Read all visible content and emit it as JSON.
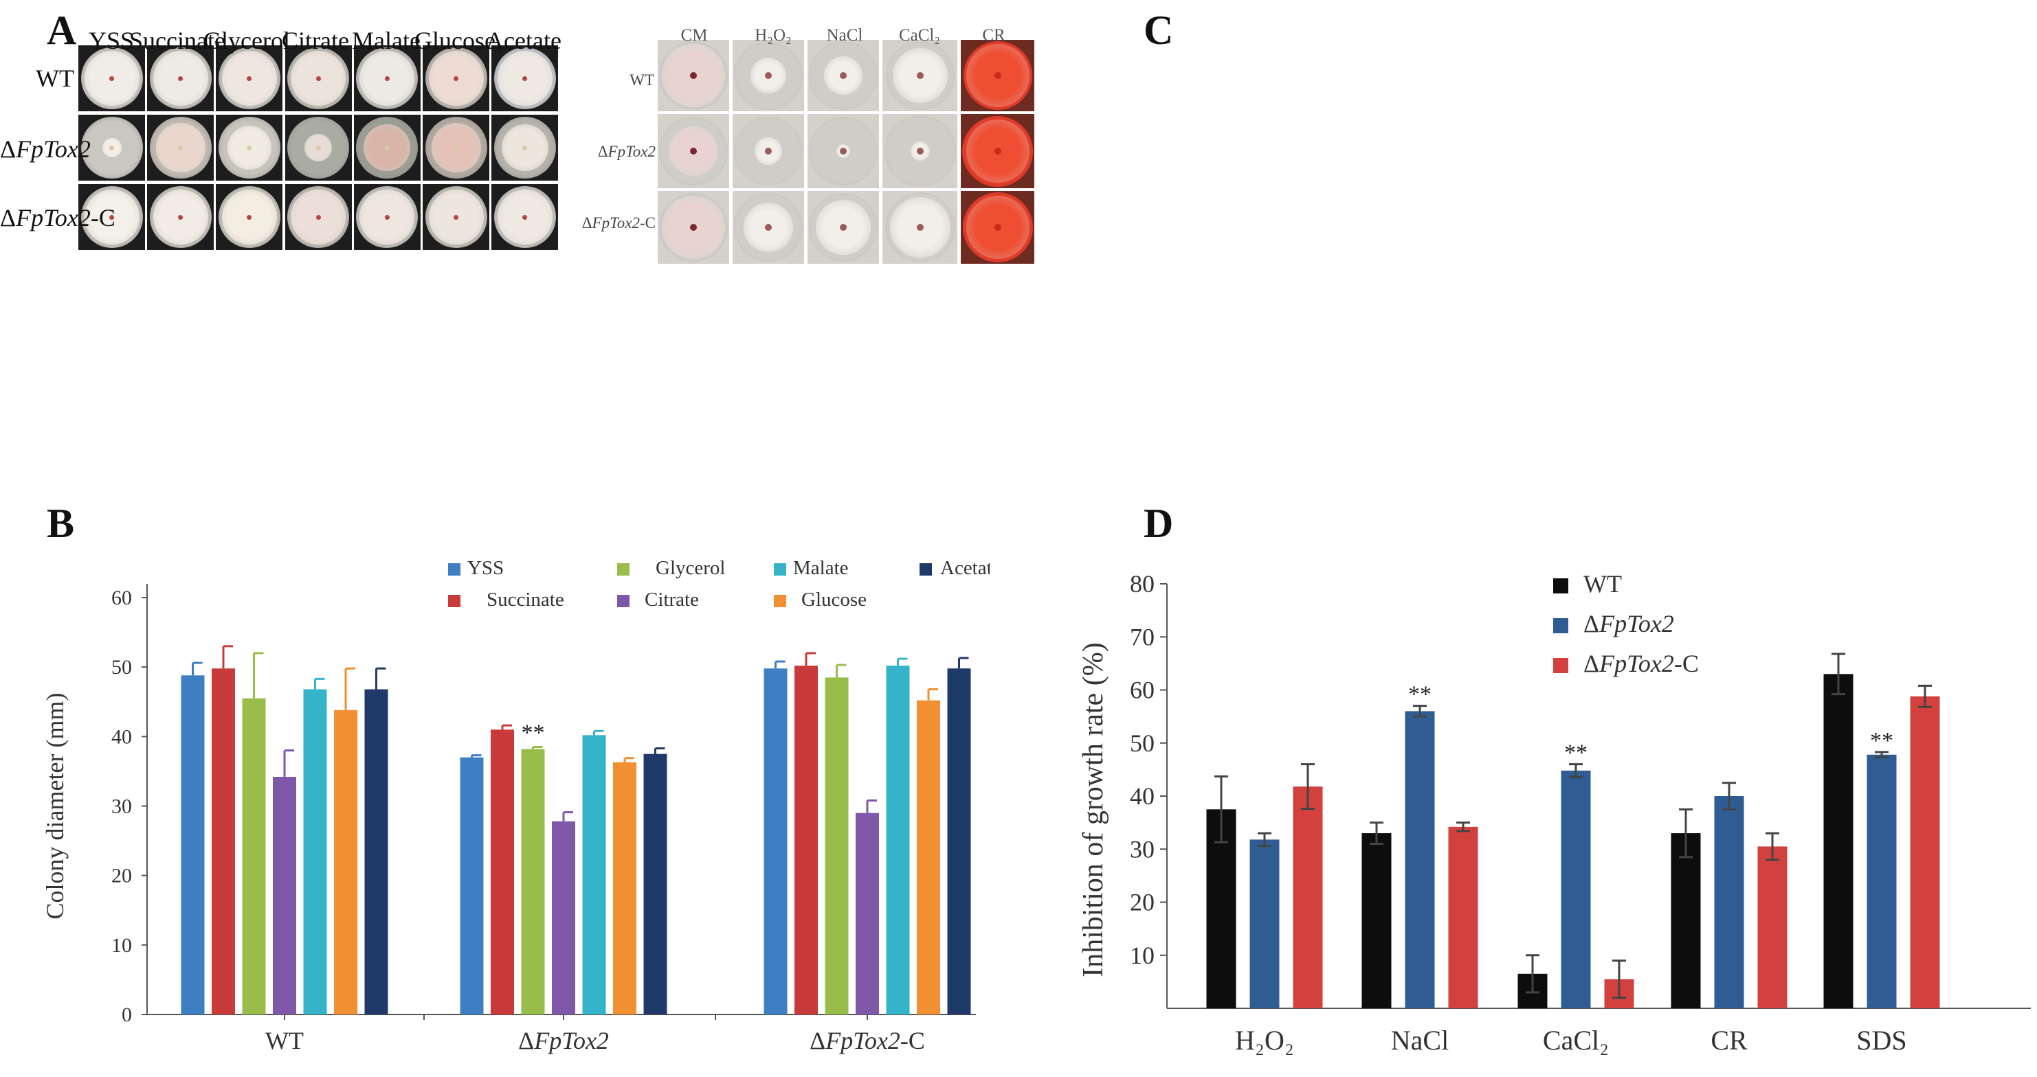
{
  "panels": {
    "A": {
      "letter": "A",
      "columns": [
        "YSS",
        "Succinate",
        "Glycerol",
        "Citrate",
        "Malate",
        "Glucose",
        "Acetate"
      ],
      "rows": [
        {
          "delta": "",
          "italic": "",
          "suffix": "WT"
        },
        {
          "delta": "Δ",
          "italic": "FpTox2",
          "suffix": ""
        },
        {
          "delta": "Δ",
          "italic": "FpTox2",
          "suffix": "-C"
        }
      ]
    },
    "C": {
      "letter": "C",
      "columns": [
        "CM",
        "H₂O₂",
        "NaCl",
        "CaCl₂",
        "CR"
      ],
      "rows": [
        {
          "delta": "",
          "italic": "",
          "suffix": "WT"
        },
        {
          "delta": "Δ",
          "italic": "FpTox2",
          "suffix": ""
        },
        {
          "delta": "Δ",
          "italic": "FpTox2",
          "suffix": "-C"
        }
      ]
    },
    "B": {
      "letter": "B"
    },
    "D": {
      "letter": "D"
    }
  },
  "chart_data": [
    {
      "id": "B",
      "type": "bar",
      "ylabel": "Colony diameter (mm)",
      "ylim": [
        0,
        60
      ],
      "yticks": [
        0,
        10,
        20,
        30,
        40,
        50,
        60
      ],
      "categories": [
        "WT",
        "ΔFpTox2",
        "ΔFpTox2-C"
      ],
      "category_labels": [
        {
          "delta": "",
          "italic": "",
          "suffix": "WT"
        },
        {
          "delta": "Δ",
          "italic": "FpTox2",
          "suffix": ""
        },
        {
          "delta": "Δ",
          "italic": "FpTox2",
          "suffix": "-C"
        }
      ],
      "series": [
        {
          "name": "YSS",
          "color": "#3d7fc2",
          "values": [
            48.8,
            37.0,
            49.8
          ],
          "errors": [
            1.8,
            0.3,
            1.0
          ]
        },
        {
          "name": "Succinate",
          "color": "#c93b3a",
          "values": [
            49.8,
            41.0,
            50.2
          ],
          "errors": [
            3.2,
            0.6,
            1.8
          ]
        },
        {
          "name": "Glycerol",
          "color": "#98bd4a",
          "values": [
            45.5,
            38.2,
            48.5
          ],
          "errors": [
            6.5,
            0.3,
            1.8
          ]
        },
        {
          "name": "Citrate",
          "color": "#7e57a8",
          "values": [
            34.2,
            27.8,
            29.0
          ],
          "errors": [
            3.8,
            1.3,
            1.8
          ]
        },
        {
          "name": "Malate",
          "color": "#35b3c9",
          "values": [
            46.8,
            40.2,
            50.2
          ],
          "errors": [
            1.5,
            0.6,
            1.0
          ]
        },
        {
          "name": "Glucose",
          "color": "#f28f32",
          "values": [
            43.8,
            36.3,
            45.2
          ],
          "errors": [
            6.0,
            0.6,
            1.6
          ]
        },
        {
          "name": "Acetate",
          "color": "#1f3a68",
          "values": [
            46.8,
            37.5,
            49.8
          ],
          "errors": [
            3.0,
            0.8,
            1.5
          ]
        }
      ],
      "annotations": [
        {
          "text": "**",
          "category": 1,
          "series": 2
        }
      ],
      "legend_position": "top-right"
    },
    {
      "id": "D",
      "type": "bar",
      "ylabel": "Inhibition of growth rate (%)",
      "ylim": [
        0,
        80
      ],
      "yticks": [
        10,
        20,
        30,
        40,
        50,
        60,
        70,
        80
      ],
      "categories": [
        "H₂O₂",
        "NaCl",
        "CaCl₂",
        "CR",
        "SDS"
      ],
      "series": [
        {
          "name": "WT",
          "label": {
            "delta": "",
            "italic": "",
            "suffix": "WT"
          },
          "color": "#0d0d0d",
          "values": [
            37.5,
            33.0,
            6.5,
            33.0,
            63.0
          ],
          "errors": [
            6.2,
            2.0,
            3.5,
            4.5,
            3.8
          ]
        },
        {
          "name": "ΔFpTox2",
          "label": {
            "delta": "Δ",
            "italic": "FpTox2",
            "suffix": ""
          },
          "color": "#2f5d93",
          "values": [
            31.8,
            56.0,
            44.8,
            40.0,
            47.8
          ],
          "errors": [
            1.2,
            1.0,
            1.2,
            2.5,
            0.5
          ]
        },
        {
          "name": "ΔFpTox2-C",
          "label": {
            "delta": "Δ",
            "italic": "FpTox2",
            "suffix": "-C"
          },
          "color": "#d3413f",
          "values": [
            41.8,
            34.2,
            5.5,
            30.5,
            58.8
          ],
          "errors": [
            4.2,
            0.8,
            3.5,
            2.5,
            2.0
          ]
        }
      ],
      "annotations": [
        {
          "text": "**",
          "category": 1,
          "series": 1
        },
        {
          "text": "**",
          "category": 2,
          "series": 1
        },
        {
          "text": "**",
          "category": 4,
          "series": 1
        }
      ],
      "legend_position": "top-right"
    }
  ]
}
